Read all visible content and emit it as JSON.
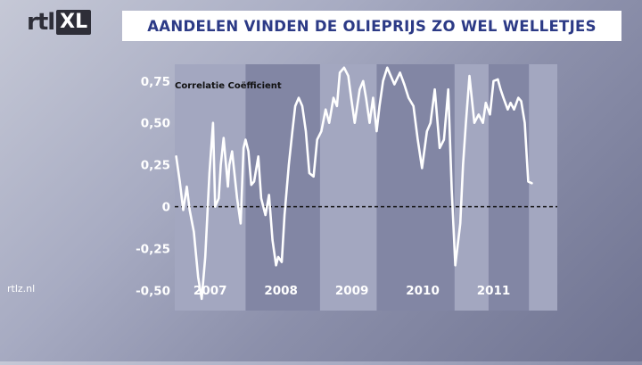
{
  "brand": {
    "logo_left": "rtl",
    "logo_right": "XL"
  },
  "title": "AANDELEN VINDEN DE OLIEPRIJS ZO WEL WELLETJES",
  "watermark": "rtlz.nl",
  "colors": {
    "title": "#2c3a86",
    "line": "#ffffff",
    "band_dark": "#8286a4",
    "band_light": "#a3a7c0"
  },
  "chart_data": {
    "type": "line",
    "title": "",
    "ylabel": "Correlatie Coëfficient",
    "xlabel": "",
    "ylim": [
      -0.62,
      0.85
    ],
    "yticks": [
      {
        "value": 0.75,
        "label": "0,75"
      },
      {
        "value": 0.5,
        "label": "0,50"
      },
      {
        "value": 0.25,
        "label": "0,25"
      },
      {
        "value": 0,
        "label": "0"
      },
      {
        "value": -0.25,
        "label": "-0,25"
      },
      {
        "value": -0.5,
        "label": "-0,50"
      }
    ],
    "xlim": [
      2006.55,
      2011.95
    ],
    "xticks": [
      {
        "value": 2007.05,
        "label": "2007"
      },
      {
        "value": 2008.05,
        "label": "2008"
      },
      {
        "value": 2009.05,
        "label": "2009"
      },
      {
        "value": 2010.05,
        "label": "2010"
      },
      {
        "value": 2011.05,
        "label": "2011"
      }
    ],
    "bands": [
      [
        2007.55,
        2008.6
      ],
      [
        2009.4,
        2010.5
      ],
      [
        2010.98,
        2011.55
      ]
    ],
    "zero_line": "dashed",
    "series": [
      {
        "x": [
          2006.57,
          2006.62,
          2006.67,
          2006.72,
          2006.76,
          2006.82,
          2006.88,
          2006.93,
          2006.98,
          2007.04,
          2007.09,
          2007.12,
          2007.17,
          2007.2,
          2007.24,
          2007.3,
          2007.32,
          2007.36,
          2007.43,
          2007.48,
          2007.52,
          2007.55,
          2007.59,
          2007.63,
          2007.67,
          2007.73,
          2007.77,
          2007.83,
          2007.88,
          2007.93,
          2007.98,
          2008.01,
          2008.06,
          2008.1,
          2008.16,
          2008.21,
          2008.25,
          2008.3,
          2008.35,
          2008.4,
          2008.45,
          2008.51,
          2008.56,
          2008.62,
          2008.68,
          2008.73,
          2008.79,
          2008.84,
          2008.88,
          2008.94,
          2009.0,
          2009.04,
          2009.09,
          2009.16,
          2009.21,
          2009.25,
          2009.3,
          2009.35,
          2009.4,
          2009.44,
          2009.49,
          2009.55,
          2009.6,
          2009.65,
          2009.73,
          2009.79,
          2009.85,
          2009.92,
          2009.98,
          2010.04,
          2010.11,
          2010.16,
          2010.22,
          2010.29,
          2010.35,
          2010.41,
          2010.46,
          2010.51,
          2010.58,
          2010.62,
          2010.66,
          2010.71,
          2010.78,
          2010.84,
          2010.9,
          2010.94,
          2011.0,
          2011.05,
          2011.11,
          2011.15,
          2011.19,
          2011.25,
          2011.29,
          2011.34,
          2011.4,
          2011.44,
          2011.49,
          2011.54,
          2011.59
        ],
        "y": [
          0.3,
          0.15,
          -0.02,
          0.12,
          -0.02,
          -0.15,
          -0.42,
          -0.55,
          -0.3,
          0.2,
          0.5,
          0.0,
          0.05,
          0.25,
          0.41,
          0.12,
          0.25,
          0.33,
          0.05,
          -0.1,
          0.35,
          0.4,
          0.33,
          0.13,
          0.15,
          0.3,
          0.05,
          -0.05,
          0.07,
          -0.2,
          -0.35,
          -0.3,
          -0.33,
          -0.05,
          0.25,
          0.45,
          0.6,
          0.65,
          0.6,
          0.45,
          0.2,
          0.18,
          0.4,
          0.45,
          0.58,
          0.5,
          0.65,
          0.6,
          0.8,
          0.83,
          0.78,
          0.65,
          0.5,
          0.7,
          0.75,
          0.65,
          0.5,
          0.65,
          0.45,
          0.6,
          0.75,
          0.83,
          0.78,
          0.73,
          0.8,
          0.73,
          0.65,
          0.6,
          0.4,
          0.23,
          0.45,
          0.5,
          0.7,
          0.35,
          0.4,
          0.7,
          0.1,
          -0.35,
          -0.1,
          0.25,
          0.5,
          0.78,
          0.5,
          0.55,
          0.5,
          0.62,
          0.55,
          0.75,
          0.76,
          0.7,
          0.65,
          0.58,
          0.62,
          0.58,
          0.65,
          0.63,
          0.5,
          0.15,
          0.14
        ]
      }
    ]
  }
}
